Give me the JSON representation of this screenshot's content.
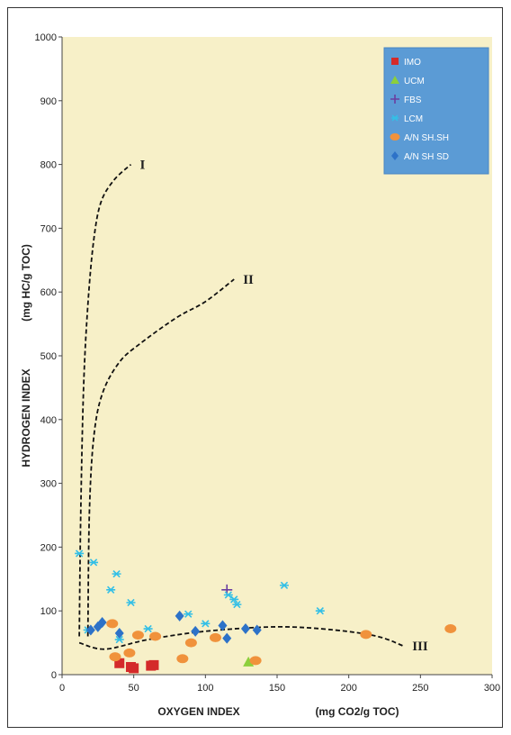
{
  "chart_data": {
    "type": "scatter",
    "title": "",
    "xlabel": "OXYGEN INDEX",
    "xlabel_units": "(mg CO2/g TOC)",
    "ylabel": "HYDROGEN INDEX",
    "ylabel_units": "(mg HC/g  TOC)",
    "xlim": [
      0,
      300
    ],
    "ylim": [
      0,
      1000
    ],
    "xticks": [
      "0",
      "50",
      "100",
      "150",
      "200",
      "250",
      "300"
    ],
    "yticks": [
      "0",
      "100",
      "200",
      "300",
      "400",
      "500",
      "600",
      "700",
      "800",
      "900",
      "1000"
    ],
    "grid": false,
    "plot_background": "#f7f0c8",
    "legend_background": "#5b9bd5",
    "legend_position": "top-right",
    "series": [
      {
        "name": "IMO",
        "marker": "square",
        "color": "#d42a2a",
        "points": [
          [
            40,
            18
          ],
          [
            48,
            12
          ],
          [
            50,
            10
          ],
          [
            62,
            14
          ],
          [
            64,
            15
          ]
        ]
      },
      {
        "name": "UCM",
        "marker": "triangle",
        "color": "#8ccf3c",
        "points": [
          [
            130,
            20
          ]
        ]
      },
      {
        "name": "FBS",
        "marker": "plus",
        "color": "#6a3ea1",
        "points": [
          [
            115,
            133
          ]
        ]
      },
      {
        "name": "LCM",
        "marker": "star",
        "color": "#33bfe6",
        "points": [
          [
            12,
            190
          ],
          [
            22,
            176
          ],
          [
            38,
            158
          ],
          [
            34,
            133
          ],
          [
            48,
            113
          ],
          [
            60,
            72
          ],
          [
            88,
            95
          ],
          [
            100,
            80
          ],
          [
            116,
            125
          ],
          [
            120,
            118
          ],
          [
            122,
            110
          ],
          [
            155,
            140
          ],
          [
            180,
            100
          ],
          [
            18,
            70
          ],
          [
            40,
            55
          ]
        ]
      },
      {
        "name": "A/N SH.SH",
        "marker": "circle",
        "color": "#f0923c",
        "points": [
          [
            35,
            80
          ],
          [
            37,
            28
          ],
          [
            47,
            34
          ],
          [
            53,
            62
          ],
          [
            65,
            60
          ],
          [
            84,
            25
          ],
          [
            90,
            50
          ],
          [
            107,
            58
          ],
          [
            135,
            22
          ],
          [
            212,
            63
          ],
          [
            271,
            72
          ]
        ]
      },
      {
        "name": "A/N SH SD",
        "marker": "diamond",
        "color": "#2d72c8",
        "points": [
          [
            20,
            70
          ],
          [
            25,
            75
          ],
          [
            28,
            82
          ],
          [
            40,
            65
          ],
          [
            82,
            92
          ],
          [
            93,
            68
          ],
          [
            112,
            77
          ],
          [
            115,
            57
          ],
          [
            128,
            72
          ],
          [
            136,
            70
          ]
        ]
      }
    ],
    "curves": [
      {
        "label": "I",
        "points": [
          [
            12,
            60
          ],
          [
            13,
            250
          ],
          [
            15,
            450
          ],
          [
            18,
            580
          ],
          [
            22,
            680
          ],
          [
            27,
            740
          ],
          [
            36,
            775
          ],
          [
            48,
            800
          ]
        ]
      },
      {
        "label": "II",
        "points": [
          [
            18,
            60
          ],
          [
            19,
            250
          ],
          [
            22,
            370
          ],
          [
            28,
            440
          ],
          [
            40,
            490
          ],
          [
            55,
            520
          ],
          [
            80,
            560
          ],
          [
            100,
            585
          ],
          [
            120,
            620
          ]
        ]
      },
      {
        "label": "III",
        "points": [
          [
            12,
            50
          ],
          [
            30,
            40
          ],
          [
            60,
            55
          ],
          [
            100,
            68
          ],
          [
            150,
            75
          ],
          [
            190,
            70
          ],
          [
            220,
            60
          ],
          [
            238,
            45
          ]
        ]
      }
    ]
  }
}
